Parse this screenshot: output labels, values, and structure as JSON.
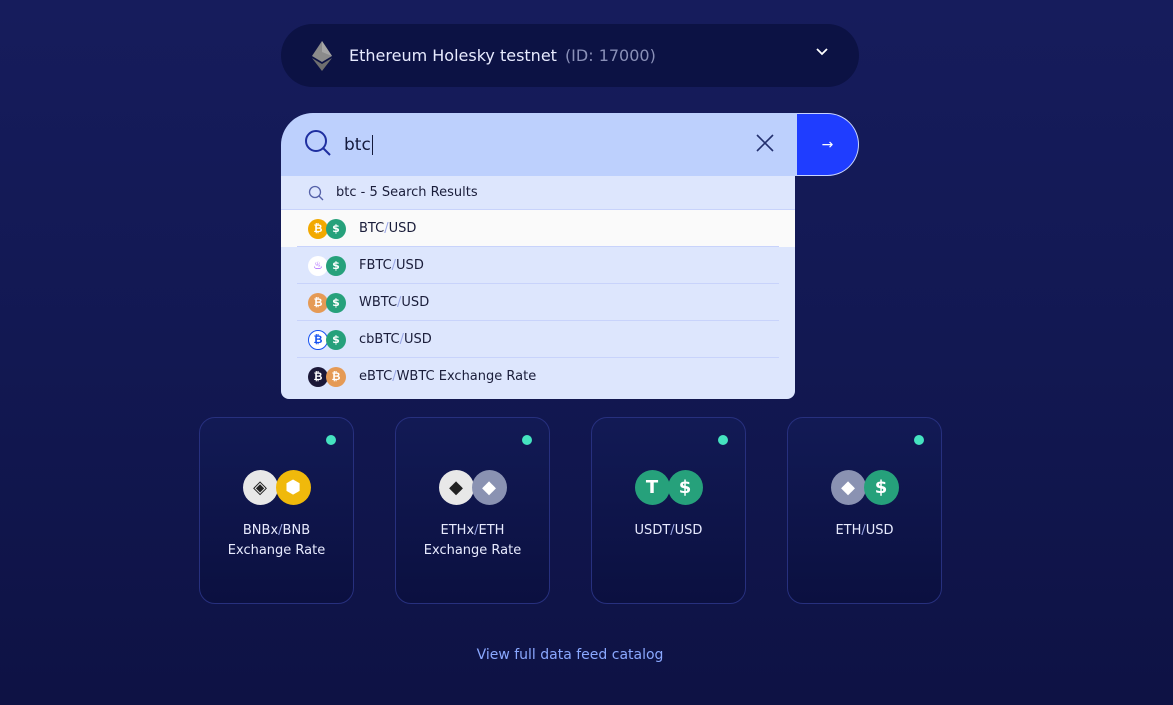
{
  "network": {
    "name": "Ethereum Holesky testnet",
    "id": "(ID: 17000)",
    "icon": "ethereum-icon"
  },
  "search": {
    "value": "btc",
    "results_header": "btc - 5 Search Results"
  },
  "results": [
    {
      "base": "BTC",
      "quote": "USD",
      "suffix": "",
      "icons": [
        "bitcoin",
        "usd"
      ],
      "colors": [
        "#f2a900",
        "#26a17b"
      ],
      "glyphs": [
        "₿",
        "$"
      ]
    },
    {
      "base": "FBTC",
      "quote": "USD",
      "suffix": "",
      "icons": [
        "fbtc",
        "usd"
      ],
      "colors": [
        "#ffffff",
        "#26a17b"
      ],
      "glyphs": [
        "♨",
        "$"
      ]
    },
    {
      "base": "WBTC",
      "quote": "USD",
      "suffix": "",
      "icons": [
        "wbtc",
        "usd"
      ],
      "colors": [
        "#e59a55",
        "#26a17b"
      ],
      "glyphs": [
        "₿",
        "$"
      ]
    },
    {
      "base": "cbBTC",
      "quote": "USD",
      "suffix": "",
      "icons": [
        "cbbtc",
        "usd"
      ],
      "colors": [
        "#ffffff",
        "#26a17b"
      ],
      "glyphs": [
        "₿",
        "$"
      ]
    },
    {
      "base": "eBTC",
      "quote": "WBTC",
      "suffix": " Exchange Rate",
      "icons": [
        "ebtc",
        "wbtc"
      ],
      "colors": [
        "#1b1838",
        "#e59a55"
      ],
      "glyphs": [
        "₿",
        "₿"
      ]
    }
  ],
  "cards": [
    {
      "line1_base": "BNBx",
      "line1_quote": "BNB",
      "line2": "Exchange Rate",
      "colors": [
        "#e8e8e8",
        "#f0b90b"
      ],
      "glyphs": [
        "◈",
        "⬢"
      ]
    },
    {
      "line1_base": "ETHx",
      "line1_quote": "ETH",
      "line2": "Exchange Rate",
      "colors": [
        "#e8e8e8",
        "#8a92b2"
      ],
      "glyphs": [
        "◆",
        "◆"
      ]
    },
    {
      "line1_base": "USDT",
      "line1_quote": "USD",
      "line2": "",
      "colors": [
        "#26a17b",
        "#26a17b"
      ],
      "glyphs": [
        "T",
        "$"
      ]
    },
    {
      "line1_base": "ETH",
      "line1_quote": "USD",
      "line2": "",
      "colors": [
        "#8a92b2",
        "#26a17b"
      ],
      "glyphs": [
        "◆",
        "$"
      ]
    }
  ],
  "separator": "/",
  "catalog_link": "View full data feed catalog",
  "status_color": "#45e3c0",
  "accent": "#1f3dff"
}
